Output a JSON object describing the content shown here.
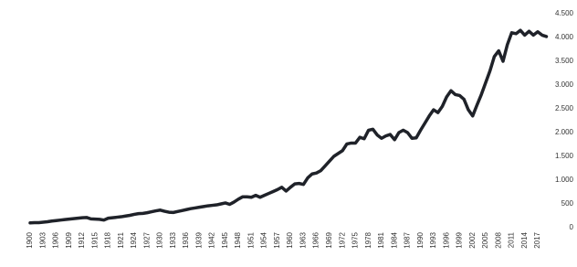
{
  "chart_data": {
    "type": "line",
    "x": [
      1900,
      1901,
      1902,
      1903,
      1904,
      1905,
      1906,
      1907,
      1908,
      1909,
      1910,
      1911,
      1912,
      1913,
      1914,
      1915,
      1916,
      1917,
      1918,
      1919,
      1920,
      1921,
      1922,
      1923,
      1924,
      1925,
      1926,
      1927,
      1928,
      1929,
      1930,
      1931,
      1932,
      1933,
      1934,
      1935,
      1936,
      1937,
      1938,
      1939,
      1940,
      1941,
      1942,
      1943,
      1944,
      1945,
      1946,
      1947,
      1948,
      1949,
      1950,
      1951,
      1952,
      1953,
      1954,
      1955,
      1956,
      1957,
      1958,
      1959,
      1960,
      1961,
      1962,
      1963,
      1964,
      1965,
      1966,
      1967,
      1968,
      1969,
      1970,
      1971,
      1972,
      1973,
      1974,
      1975,
      1976,
      1977,
      1978,
      1979,
      1980,
      1981,
      1982,
      1983,
      1984,
      1985,
      1986,
      1987,
      1988,
      1989,
      1990,
      1991,
      1992,
      1993,
      1994,
      1995,
      1996,
      1997,
      1998,
      1999,
      2000,
      2001,
      2002,
      2003,
      2004,
      2005,
      2006,
      2007,
      2008,
      2009,
      2010,
      2011,
      2012,
      2013,
      2014,
      2015,
      2016,
      2017,
      2018,
      2019
    ],
    "values": [
      100,
      105,
      105,
      115,
      125,
      140,
      150,
      160,
      170,
      180,
      190,
      200,
      210,
      215,
      185,
      180,
      175,
      160,
      200,
      210,
      220,
      230,
      245,
      260,
      280,
      295,
      300,
      315,
      335,
      355,
      370,
      345,
      325,
      320,
      340,
      360,
      380,
      400,
      415,
      430,
      445,
      460,
      470,
      480,
      500,
      520,
      490,
      540,
      600,
      650,
      650,
      640,
      680,
      640,
      680,
      720,
      760,
      800,
      850,
      770,
      850,
      920,
      930,
      910,
      1050,
      1130,
      1150,
      1200,
      1300,
      1400,
      1500,
      1560,
      1620,
      1760,
      1780,
      1780,
      1900,
      1870,
      2050,
      2070,
      1950,
      1880,
      1930,
      1960,
      1850,
      2000,
      2050,
      2000,
      1880,
      1890,
      2050,
      2200,
      2350,
      2480,
      2420,
      2550,
      2750,
      2880,
      2800,
      2780,
      2700,
      2480,
      2350,
      2580,
      2800,
      3050,
      3300,
      3600,
      3720,
      3500,
      3850,
      4100,
      4080,
      4150,
      4050,
      4130,
      4050,
      4120,
      4050,
      4020
    ],
    "color": "#1f2229",
    "xlim": [
      1900,
      2019
    ],
    "xticks": [
      1900,
      1903,
      1906,
      1909,
      1912,
      1915,
      1918,
      1921,
      1924,
      1927,
      1930,
      1933,
      1936,
      1939,
      1942,
      1945,
      1948,
      1951,
      1954,
      1957,
      1960,
      1963,
      1966,
      1969,
      1972,
      1975,
      1978,
      1981,
      1984,
      1987,
      1990,
      1993,
      1996,
      1999,
      2002,
      2005,
      2008,
      2011,
      2014,
      2017
    ],
    "ylim": [
      0,
      4500
    ],
    "yticks": [
      0,
      500,
      {
        "value": 1000,
        "label": "1.000"
      },
      {
        "value": 1500,
        "label": "1.500"
      },
      {
        "value": 2000,
        "label": "2.000"
      },
      {
        "value": 2500,
        "label": "2.500"
      },
      {
        "value": 3000,
        "label": "3.000"
      },
      {
        "value": 3500,
        "label": "3.500"
      },
      {
        "value": 4000,
        "label": "4.000"
      },
      {
        "value": 4500,
        "label": "4.500"
      }
    ],
    "grid": false
  }
}
